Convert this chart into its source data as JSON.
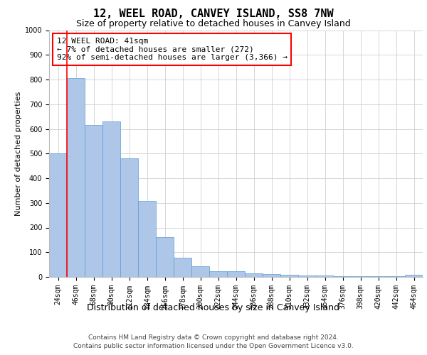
{
  "title": "12, WEEL ROAD, CANVEY ISLAND, SS8 7NW",
  "subtitle": "Size of property relative to detached houses in Canvey Island",
  "xlabel": "Distribution of detached houses by size in Canvey Island",
  "ylabel": "Number of detached properties",
  "categories": [
    "24sqm",
    "46sqm",
    "68sqm",
    "90sqm",
    "112sqm",
    "134sqm",
    "156sqm",
    "178sqm",
    "200sqm",
    "222sqm",
    "244sqm",
    "266sqm",
    "288sqm",
    "310sqm",
    "332sqm",
    "354sqm",
    "376sqm",
    "398sqm",
    "420sqm",
    "442sqm",
    "464sqm"
  ],
  "values": [
    500,
    805,
    615,
    630,
    480,
    308,
    160,
    78,
    42,
    22,
    22,
    15,
    12,
    10,
    7,
    5,
    3,
    2,
    2,
    2,
    10
  ],
  "bar_color": "#aec6e8",
  "bar_edge_color": "#5b9bd5",
  "vline_color": "red",
  "annotation_text": "12 WEEL ROAD: 41sqm\n← 7% of detached houses are smaller (272)\n92% of semi-detached houses are larger (3,366) →",
  "annotation_box_color": "white",
  "annotation_box_edge": "red",
  "ylim": [
    0,
    1000
  ],
  "yticks": [
    0,
    100,
    200,
    300,
    400,
    500,
    600,
    700,
    800,
    900,
    1000
  ],
  "grid_color": "#d0d0d0",
  "background_color": "white",
  "footer_line1": "Contains HM Land Registry data © Crown copyright and database right 2024.",
  "footer_line2": "Contains public sector information licensed under the Open Government Licence v3.0.",
  "title_fontsize": 11,
  "subtitle_fontsize": 9,
  "xlabel_fontsize": 9,
  "ylabel_fontsize": 8,
  "tick_fontsize": 7,
  "annotation_fontsize": 8,
  "footer_fontsize": 6.5
}
